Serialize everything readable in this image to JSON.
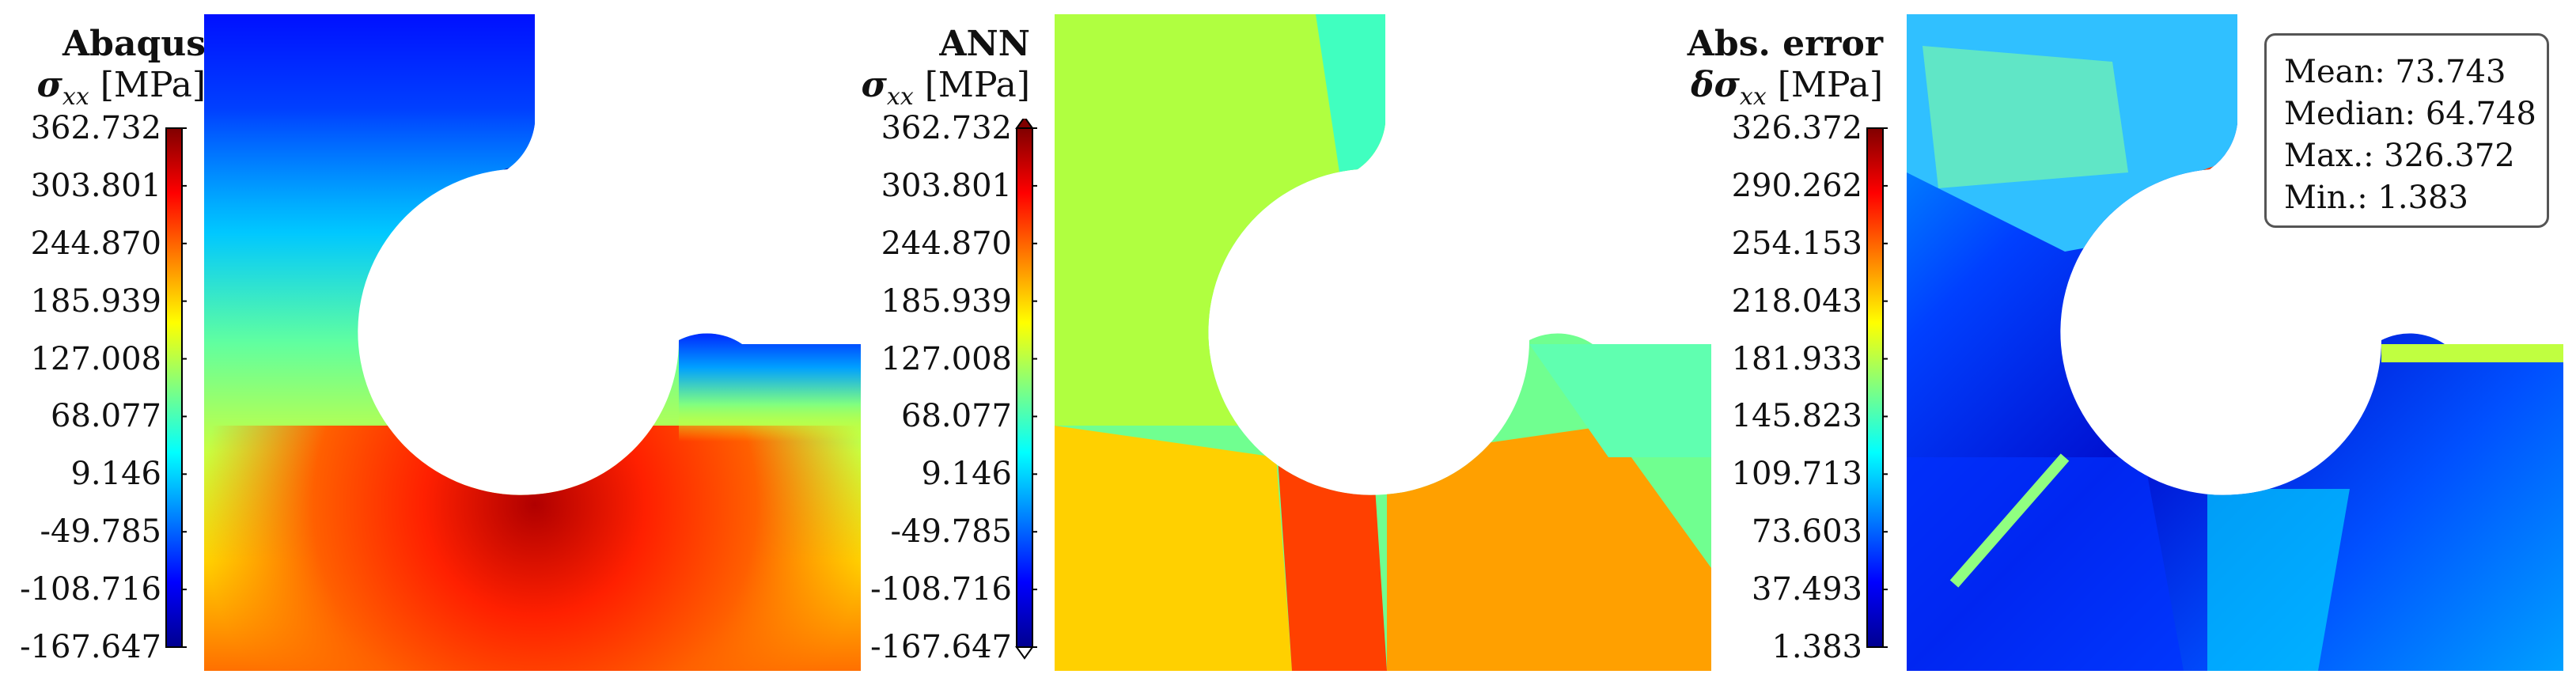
{
  "panels": [
    {
      "title": "Abaqus",
      "symbol": "σ",
      "subscript": "xx",
      "unit": "[MPa]",
      "colorbar": {
        "ticks": [
          "362.732",
          "303.801",
          "244.870",
          "185.939",
          "127.008",
          "68.077",
          "9.146",
          "-49.785",
          "-108.716",
          "-167.647"
        ],
        "extend_arrows": false,
        "colormap": "jet"
      }
    },
    {
      "title": "ANN",
      "symbol": "σ",
      "subscript": "xx",
      "unit": "[MPa]",
      "colorbar": {
        "ticks": [
          "362.732",
          "303.801",
          "244.870",
          "185.939",
          "127.008",
          "68.077",
          "9.146",
          "-49.785",
          "-108.716",
          "-167.647"
        ],
        "extend_arrows": true,
        "colormap": "jet"
      }
    },
    {
      "title": "Abs. error",
      "symbol": "δσ",
      "subscript": "xx",
      "unit": "[MPa]",
      "colorbar": {
        "ticks": [
          "326.372",
          "290.262",
          "254.153",
          "218.043",
          "181.933",
          "145.823",
          "109.713",
          "73.603",
          "37.493",
          "1.383"
        ],
        "extend_arrows": false,
        "colormap": "jet"
      }
    }
  ],
  "stats": {
    "mean": "Mean: 73.743",
    "median": "Median: 64.748",
    "max": "Max.: 326.372",
    "min": "Min.: 1.383"
  },
  "colors": {
    "jet_stops": [
      "#00008f",
      "#0000ff",
      "#0080ff",
      "#00ffff",
      "#80ff80",
      "#ffff00",
      "#ff8000",
      "#ff0000",
      "#800000"
    ]
  }
}
